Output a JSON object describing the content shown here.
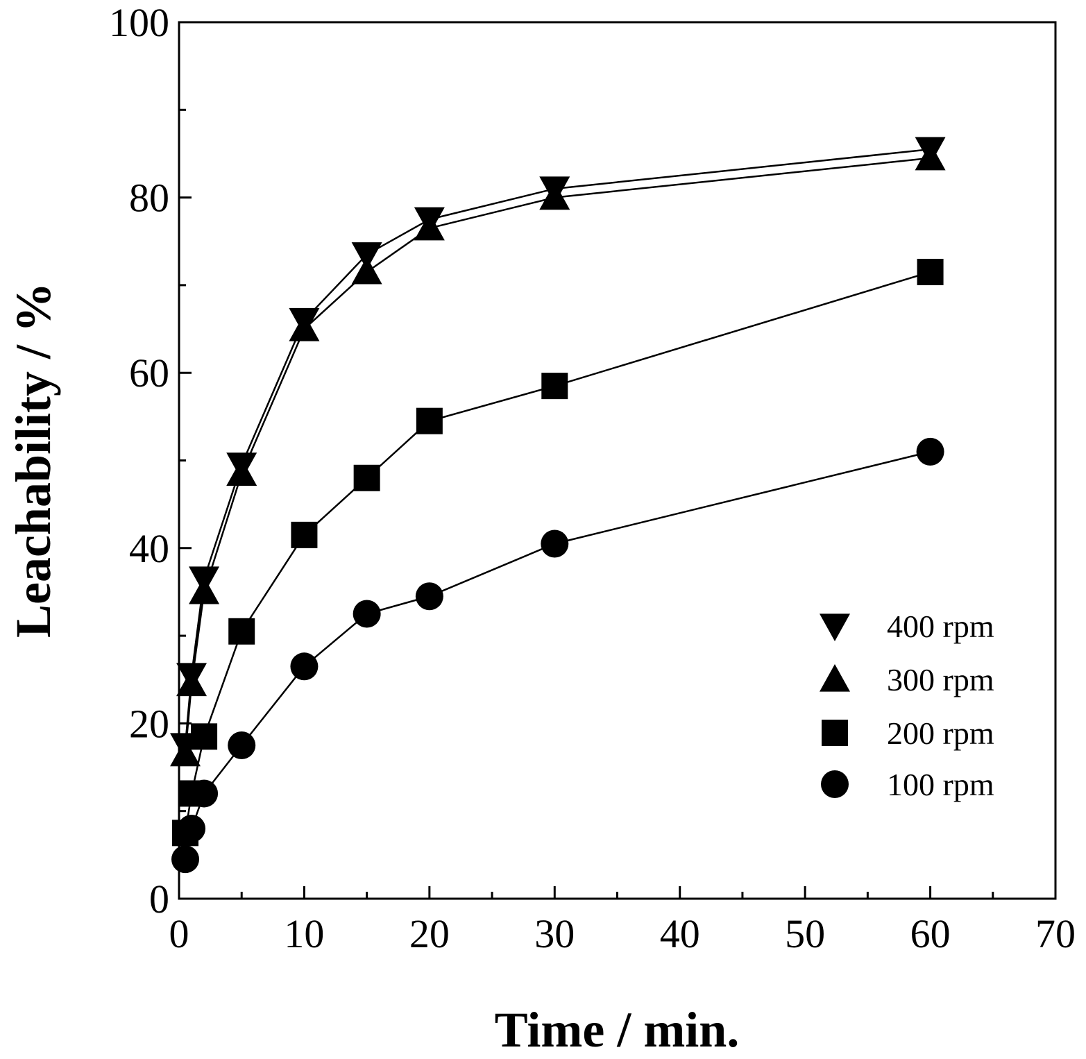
{
  "chart_data": {
    "type": "line",
    "title": "",
    "xlabel": "Time / min.",
    "ylabel": "Leachability / %",
    "xlim": [
      0,
      70
    ],
    "ylim": [
      0,
      100
    ],
    "x_major_ticks": [
      0,
      10,
      20,
      30,
      40,
      50,
      60,
      70
    ],
    "x_minor_ticks": [
      5,
      15,
      25,
      35,
      45,
      55,
      65
    ],
    "y_major_ticks": [
      0,
      20,
      40,
      60,
      80,
      100
    ],
    "y_minor_ticks": [
      10,
      30,
      50,
      70,
      90
    ],
    "x_tick_labels": [
      "0",
      "10",
      "20",
      "30",
      "40",
      "50",
      "60",
      "70"
    ],
    "y_tick_labels": [
      "0",
      "20",
      "40",
      "60",
      "80",
      "100"
    ],
    "grid": false,
    "legend_position": "bottom-right",
    "series": [
      {
        "name": "400 rpm",
        "marker": "triangle-down",
        "x": [
          0.5,
          1,
          2,
          5,
          10,
          15,
          20,
          30,
          60
        ],
        "y": [
          17.5,
          25.5,
          36.5,
          49.5,
          66,
          73.5,
          77.5,
          81,
          85.5
        ]
      },
      {
        "name": "300 rpm",
        "marker": "triangle-up",
        "x": [
          0.5,
          1,
          2,
          5,
          10,
          15,
          20,
          30,
          60
        ],
        "y": [
          16.5,
          24.5,
          35,
          48.5,
          65,
          71.5,
          76.5,
          80,
          84.5
        ]
      },
      {
        "name": "200 rpm",
        "marker": "square",
        "x": [
          0.5,
          1,
          2,
          5,
          10,
          15,
          20,
          30,
          60
        ],
        "y": [
          7.5,
          12,
          18.5,
          30.5,
          41.5,
          48,
          54.5,
          58.5,
          71.5
        ]
      },
      {
        "name": "100 rpm",
        "marker": "circle",
        "x": [
          0.5,
          1,
          2,
          5,
          10,
          15,
          20,
          30,
          60
        ],
        "y": [
          4.5,
          8,
          12,
          17.5,
          26.5,
          32.5,
          34.5,
          40.5,
          51
        ]
      }
    ]
  }
}
